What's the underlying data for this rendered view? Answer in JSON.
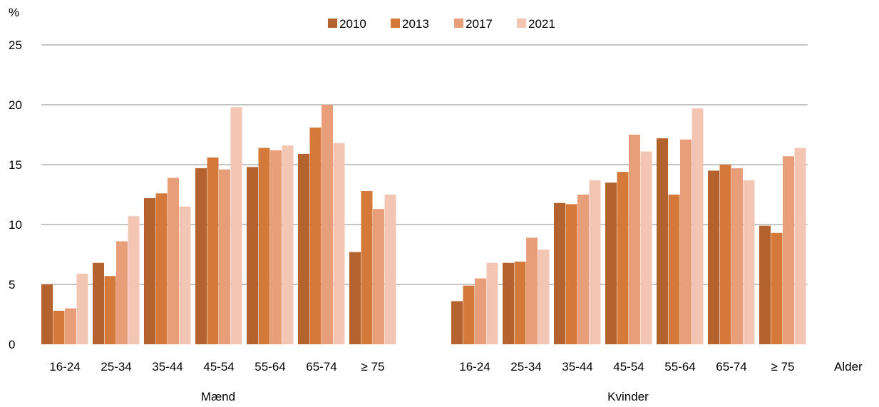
{
  "chart_data": {
    "type": "bar",
    "ylabel": "%",
    "xlabel": "Alder",
    "ylim": [
      0,
      25
    ],
    "yticks": [
      0,
      5,
      10,
      15,
      20,
      25
    ],
    "grid": true,
    "legend_position": "top-center",
    "series_names": [
      "2010",
      "2013",
      "2017",
      "2021"
    ],
    "colors": [
      "#b5632e",
      "#d5793a",
      "#e89e78",
      "#f2c6b3"
    ],
    "groups": [
      {
        "name": "Mænd",
        "categories": [
          "16-24",
          "25-34",
          "35-44",
          "45-54",
          "55-64",
          "65-74",
          "≥ 75"
        ],
        "series": [
          {
            "name": "2010",
            "values": [
              5.0,
              6.8,
              12.2,
              14.7,
              14.8,
              15.9,
              7.7
            ]
          },
          {
            "name": "2013",
            "values": [
              2.8,
              5.7,
              12.6,
              15.6,
              16.4,
              18.1,
              12.8
            ]
          },
          {
            "name": "2017",
            "values": [
              3.0,
              8.6,
              13.9,
              14.6,
              16.2,
              20.0,
              11.3
            ]
          },
          {
            "name": "2021",
            "values": [
              5.9,
              10.7,
              11.5,
              19.8,
              16.6,
              16.8,
              12.5
            ]
          }
        ]
      },
      {
        "name": "Kvinder",
        "categories": [
          "16-24",
          "25-34",
          "35-44",
          "45-54",
          "55-64",
          "65-74",
          "≥ 75"
        ],
        "series": [
          {
            "name": "2010",
            "values": [
              3.6,
              6.8,
              11.8,
              13.5,
              17.2,
              14.5,
              9.9
            ]
          },
          {
            "name": "2013",
            "values": [
              4.9,
              6.9,
              11.7,
              14.4,
              12.5,
              15.0,
              9.3
            ]
          },
          {
            "name": "2017",
            "values": [
              5.5,
              8.9,
              12.5,
              17.5,
              17.1,
              14.7,
              15.7
            ]
          },
          {
            "name": "2021",
            "values": [
              6.8,
              7.9,
              13.7,
              16.1,
              19.7,
              13.7,
              16.4
            ]
          }
        ]
      }
    ]
  }
}
